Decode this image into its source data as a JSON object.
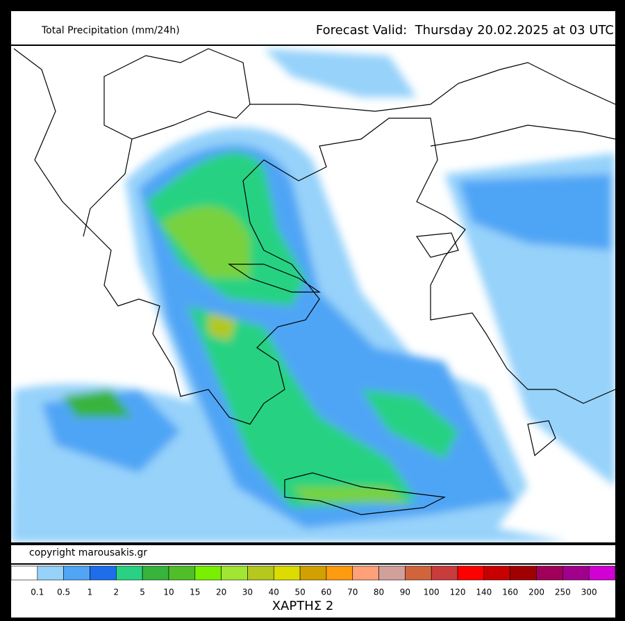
{
  "header": {
    "title": "Total Precipitation (mm/24h)",
    "valid": "Forecast Valid:  Thursday 20.02.2025 at 03 UTC"
  },
  "footer": {
    "copyright": "copyright marousakis.gr",
    "map_name": "ΧΑΡΤΗΣ 2"
  },
  "legend": {
    "labels": [
      0.1,
      0.5,
      1,
      2,
      5,
      10,
      15,
      20,
      30,
      40,
      50,
      60,
      70,
      80,
      90,
      100,
      120,
      140,
      160,
      200,
      250,
      300
    ],
    "colors": [
      "#ffffff",
      "#96d2fa",
      "#50a5f5",
      "#1e6eeb",
      "#28d282",
      "#37b43c",
      "#50be28",
      "#78f000",
      "#a0e632",
      "#b4c81e",
      "#dcdc00",
      "#d2a000",
      "#ff9b0f",
      "#ffa078",
      "#d2a09b",
      "#d2643c",
      "#c83c3c",
      "#ff0000",
      "#c80000",
      "#a00000",
      "#a0005a",
      "#a0008c",
      "#d200d2"
    ]
  }
}
